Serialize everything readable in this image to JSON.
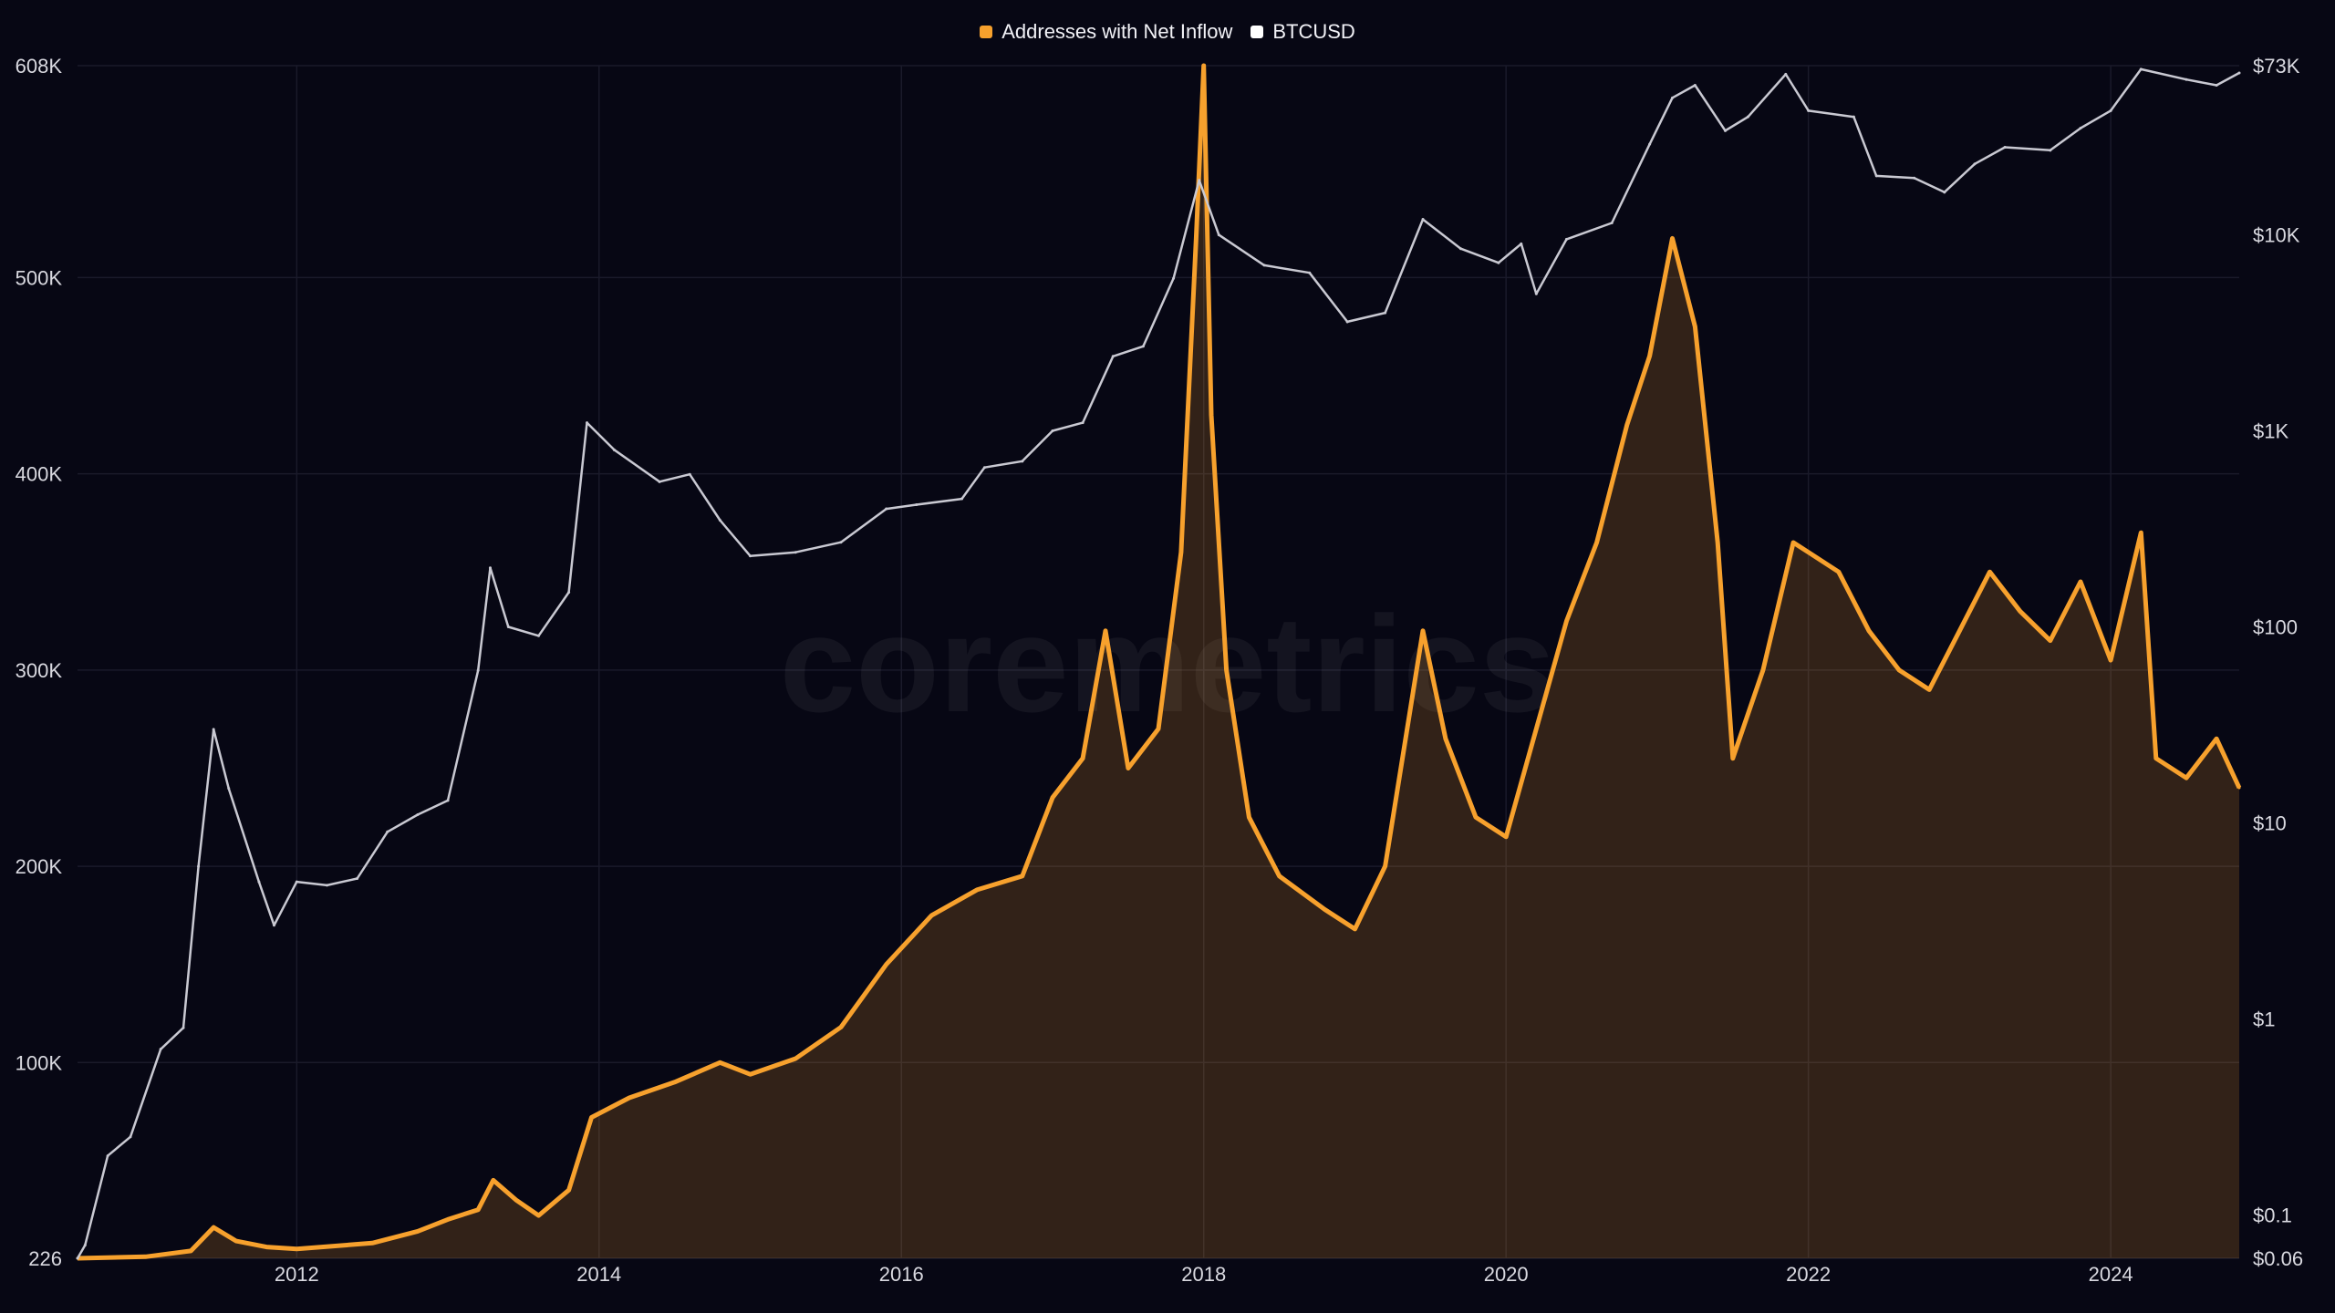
{
  "legend": [
    {
      "label": "Addresses with Net Inflow",
      "color": "#F7A12D"
    },
    {
      "label": "BTCUSD",
      "color": "#FFFFFF"
    }
  ],
  "watermark": "coremetrics",
  "colors": {
    "background": "#070714",
    "inflow": "#F7A12D",
    "price": "#C9C9D2",
    "grid": "#1A1A2A"
  },
  "chart_data": {
    "type": "line",
    "grid": true,
    "legend_position": "top-center",
    "xlim": [
      2010.55,
      2024.85
    ],
    "x_ticks": [
      {
        "value": 2012,
        "label": "2012"
      },
      {
        "value": 2014,
        "label": "2014"
      },
      {
        "value": 2016,
        "label": "2016"
      },
      {
        "value": 2018,
        "label": "2018"
      },
      {
        "value": 2020,
        "label": "2020"
      },
      {
        "value": 2022,
        "label": "2022"
      },
      {
        "value": 2024,
        "label": "2024"
      }
    ],
    "y_left": {
      "scale": "linear",
      "range": [
        226,
        608000
      ],
      "ticks": [
        {
          "value": 226,
          "label": "226"
        },
        {
          "value": 100000,
          "label": "100K"
        },
        {
          "value": 200000,
          "label": "200K"
        },
        {
          "value": 300000,
          "label": "300K"
        },
        {
          "value": 400000,
          "label": "400K"
        },
        {
          "value": 500000,
          "label": "500K"
        },
        {
          "value": 608000,
          "label": "608K"
        }
      ]
    },
    "y_right": {
      "scale": "log",
      "range": [
        0.06,
        73000
      ],
      "ticks": [
        {
          "value": 0.06,
          "label": "$0.06"
        },
        {
          "value": 0.1,
          "label": "$0.1"
        },
        {
          "value": 1,
          "label": "$1"
        },
        {
          "value": 10,
          "label": "$10"
        },
        {
          "value": 100,
          "label": "$100"
        },
        {
          "value": 1000,
          "label": "$1K"
        },
        {
          "value": 10000,
          "label": "$10K"
        },
        {
          "value": 73000,
          "label": "$73K"
        }
      ]
    },
    "series": [
      {
        "name": "Addresses with Net Inflow",
        "axis": "left",
        "color": "#F7A12D",
        "points": [
          [
            2010.55,
            226
          ],
          [
            2011.0,
            1000
          ],
          [
            2011.3,
            4000
          ],
          [
            2011.45,
            16000
          ],
          [
            2011.6,
            9000
          ],
          [
            2011.8,
            6000
          ],
          [
            2012.0,
            5000
          ],
          [
            2012.5,
            8000
          ],
          [
            2012.8,
            14000
          ],
          [
            2013.0,
            20000
          ],
          [
            2013.2,
            25000
          ],
          [
            2013.3,
            40000
          ],
          [
            2013.45,
            30000
          ],
          [
            2013.6,
            22000
          ],
          [
            2013.8,
            35000
          ],
          [
            2013.95,
            72000
          ],
          [
            2014.2,
            82000
          ],
          [
            2014.5,
            90000
          ],
          [
            2014.8,
            100000
          ],
          [
            2015.0,
            94000
          ],
          [
            2015.3,
            102000
          ],
          [
            2015.6,
            118000
          ],
          [
            2015.9,
            150000
          ],
          [
            2016.2,
            175000
          ],
          [
            2016.5,
            188000
          ],
          [
            2016.8,
            195000
          ],
          [
            2017.0,
            235000
          ],
          [
            2017.2,
            255000
          ],
          [
            2017.35,
            320000
          ],
          [
            2017.5,
            250000
          ],
          [
            2017.7,
            270000
          ],
          [
            2017.85,
            360000
          ],
          [
            2017.95,
            520000
          ],
          [
            2018.0,
            608000
          ],
          [
            2018.05,
            430000
          ],
          [
            2018.15,
            300000
          ],
          [
            2018.3,
            225000
          ],
          [
            2018.5,
            195000
          ],
          [
            2018.8,
            178000
          ],
          [
            2019.0,
            168000
          ],
          [
            2019.2,
            200000
          ],
          [
            2019.45,
            320000
          ],
          [
            2019.6,
            265000
          ],
          [
            2019.8,
            225000
          ],
          [
            2020.0,
            215000
          ],
          [
            2020.2,
            270000
          ],
          [
            2020.4,
            325000
          ],
          [
            2020.6,
            365000
          ],
          [
            2020.8,
            425000
          ],
          [
            2020.95,
            460000
          ],
          [
            2021.1,
            520000
          ],
          [
            2021.25,
            475000
          ],
          [
            2021.4,
            365000
          ],
          [
            2021.5,
            255000
          ],
          [
            2021.7,
            300000
          ],
          [
            2021.9,
            365000
          ],
          [
            2022.0,
            360000
          ],
          [
            2022.2,
            350000
          ],
          [
            2022.4,
            320000
          ],
          [
            2022.6,
            300000
          ],
          [
            2022.8,
            290000
          ],
          [
            2023.0,
            320000
          ],
          [
            2023.2,
            350000
          ],
          [
            2023.4,
            330000
          ],
          [
            2023.6,
            315000
          ],
          [
            2023.8,
            345000
          ],
          [
            2024.0,
            305000
          ],
          [
            2024.2,
            370000
          ],
          [
            2024.3,
            255000
          ],
          [
            2024.5,
            245000
          ],
          [
            2024.7,
            265000
          ],
          [
            2024.85,
            240000
          ]
        ]
      },
      {
        "name": "BTCUSD",
        "axis": "right",
        "color": "#C9C9D2",
        "points": [
          [
            2010.55,
            0.06
          ],
          [
            2010.6,
            0.07
          ],
          [
            2010.75,
            0.2
          ],
          [
            2010.9,
            0.25
          ],
          [
            2011.1,
            0.7
          ],
          [
            2011.25,
            0.9
          ],
          [
            2011.35,
            6
          ],
          [
            2011.45,
            30
          ],
          [
            2011.55,
            15
          ],
          [
            2011.75,
            5
          ],
          [
            2011.85,
            3
          ],
          [
            2012.0,
            5
          ],
          [
            2012.2,
            4.8
          ],
          [
            2012.4,
            5.2
          ],
          [
            2012.6,
            9
          ],
          [
            2012.8,
            11
          ],
          [
            2013.0,
            13
          ],
          [
            2013.2,
            60
          ],
          [
            2013.28,
            200
          ],
          [
            2013.4,
            100
          ],
          [
            2013.6,
            90
          ],
          [
            2013.8,
            150
          ],
          [
            2013.92,
            1100
          ],
          [
            2014.1,
            800
          ],
          [
            2014.4,
            550
          ],
          [
            2014.6,
            600
          ],
          [
            2014.8,
            350
          ],
          [
            2015.0,
            230
          ],
          [
            2015.3,
            240
          ],
          [
            2015.6,
            270
          ],
          [
            2015.9,
            400
          ],
          [
            2016.1,
            420
          ],
          [
            2016.4,
            450
          ],
          [
            2016.55,
            650
          ],
          [
            2016.8,
            700
          ],
          [
            2017.0,
            1000
          ],
          [
            2017.2,
            1100
          ],
          [
            2017.4,
            2400
          ],
          [
            2017.6,
            2700
          ],
          [
            2017.8,
            6000
          ],
          [
            2017.97,
            19000
          ],
          [
            2018.1,
            10000
          ],
          [
            2018.4,
            7000
          ],
          [
            2018.7,
            6400
          ],
          [
            2018.95,
            3600
          ],
          [
            2019.2,
            4000
          ],
          [
            2019.45,
            12000
          ],
          [
            2019.7,
            8500
          ],
          [
            2019.95,
            7200
          ],
          [
            2020.1,
            9000
          ],
          [
            2020.2,
            5000
          ],
          [
            2020.4,
            9500
          ],
          [
            2020.7,
            11500
          ],
          [
            2020.95,
            29000
          ],
          [
            2021.1,
            50000
          ],
          [
            2021.25,
            58000
          ],
          [
            2021.45,
            34000
          ],
          [
            2021.6,
            40000
          ],
          [
            2021.85,
            66000
          ],
          [
            2022.0,
            43000
          ],
          [
            2022.3,
            40000
          ],
          [
            2022.45,
            20000
          ],
          [
            2022.7,
            19500
          ],
          [
            2022.9,
            16500
          ],
          [
            2023.1,
            23000
          ],
          [
            2023.3,
            28000
          ],
          [
            2023.6,
            27000
          ],
          [
            2023.8,
            35000
          ],
          [
            2024.0,
            43000
          ],
          [
            2024.2,
            70000
          ],
          [
            2024.5,
            62000
          ],
          [
            2024.7,
            58000
          ],
          [
            2024.85,
            67000
          ]
        ]
      }
    ]
  }
}
